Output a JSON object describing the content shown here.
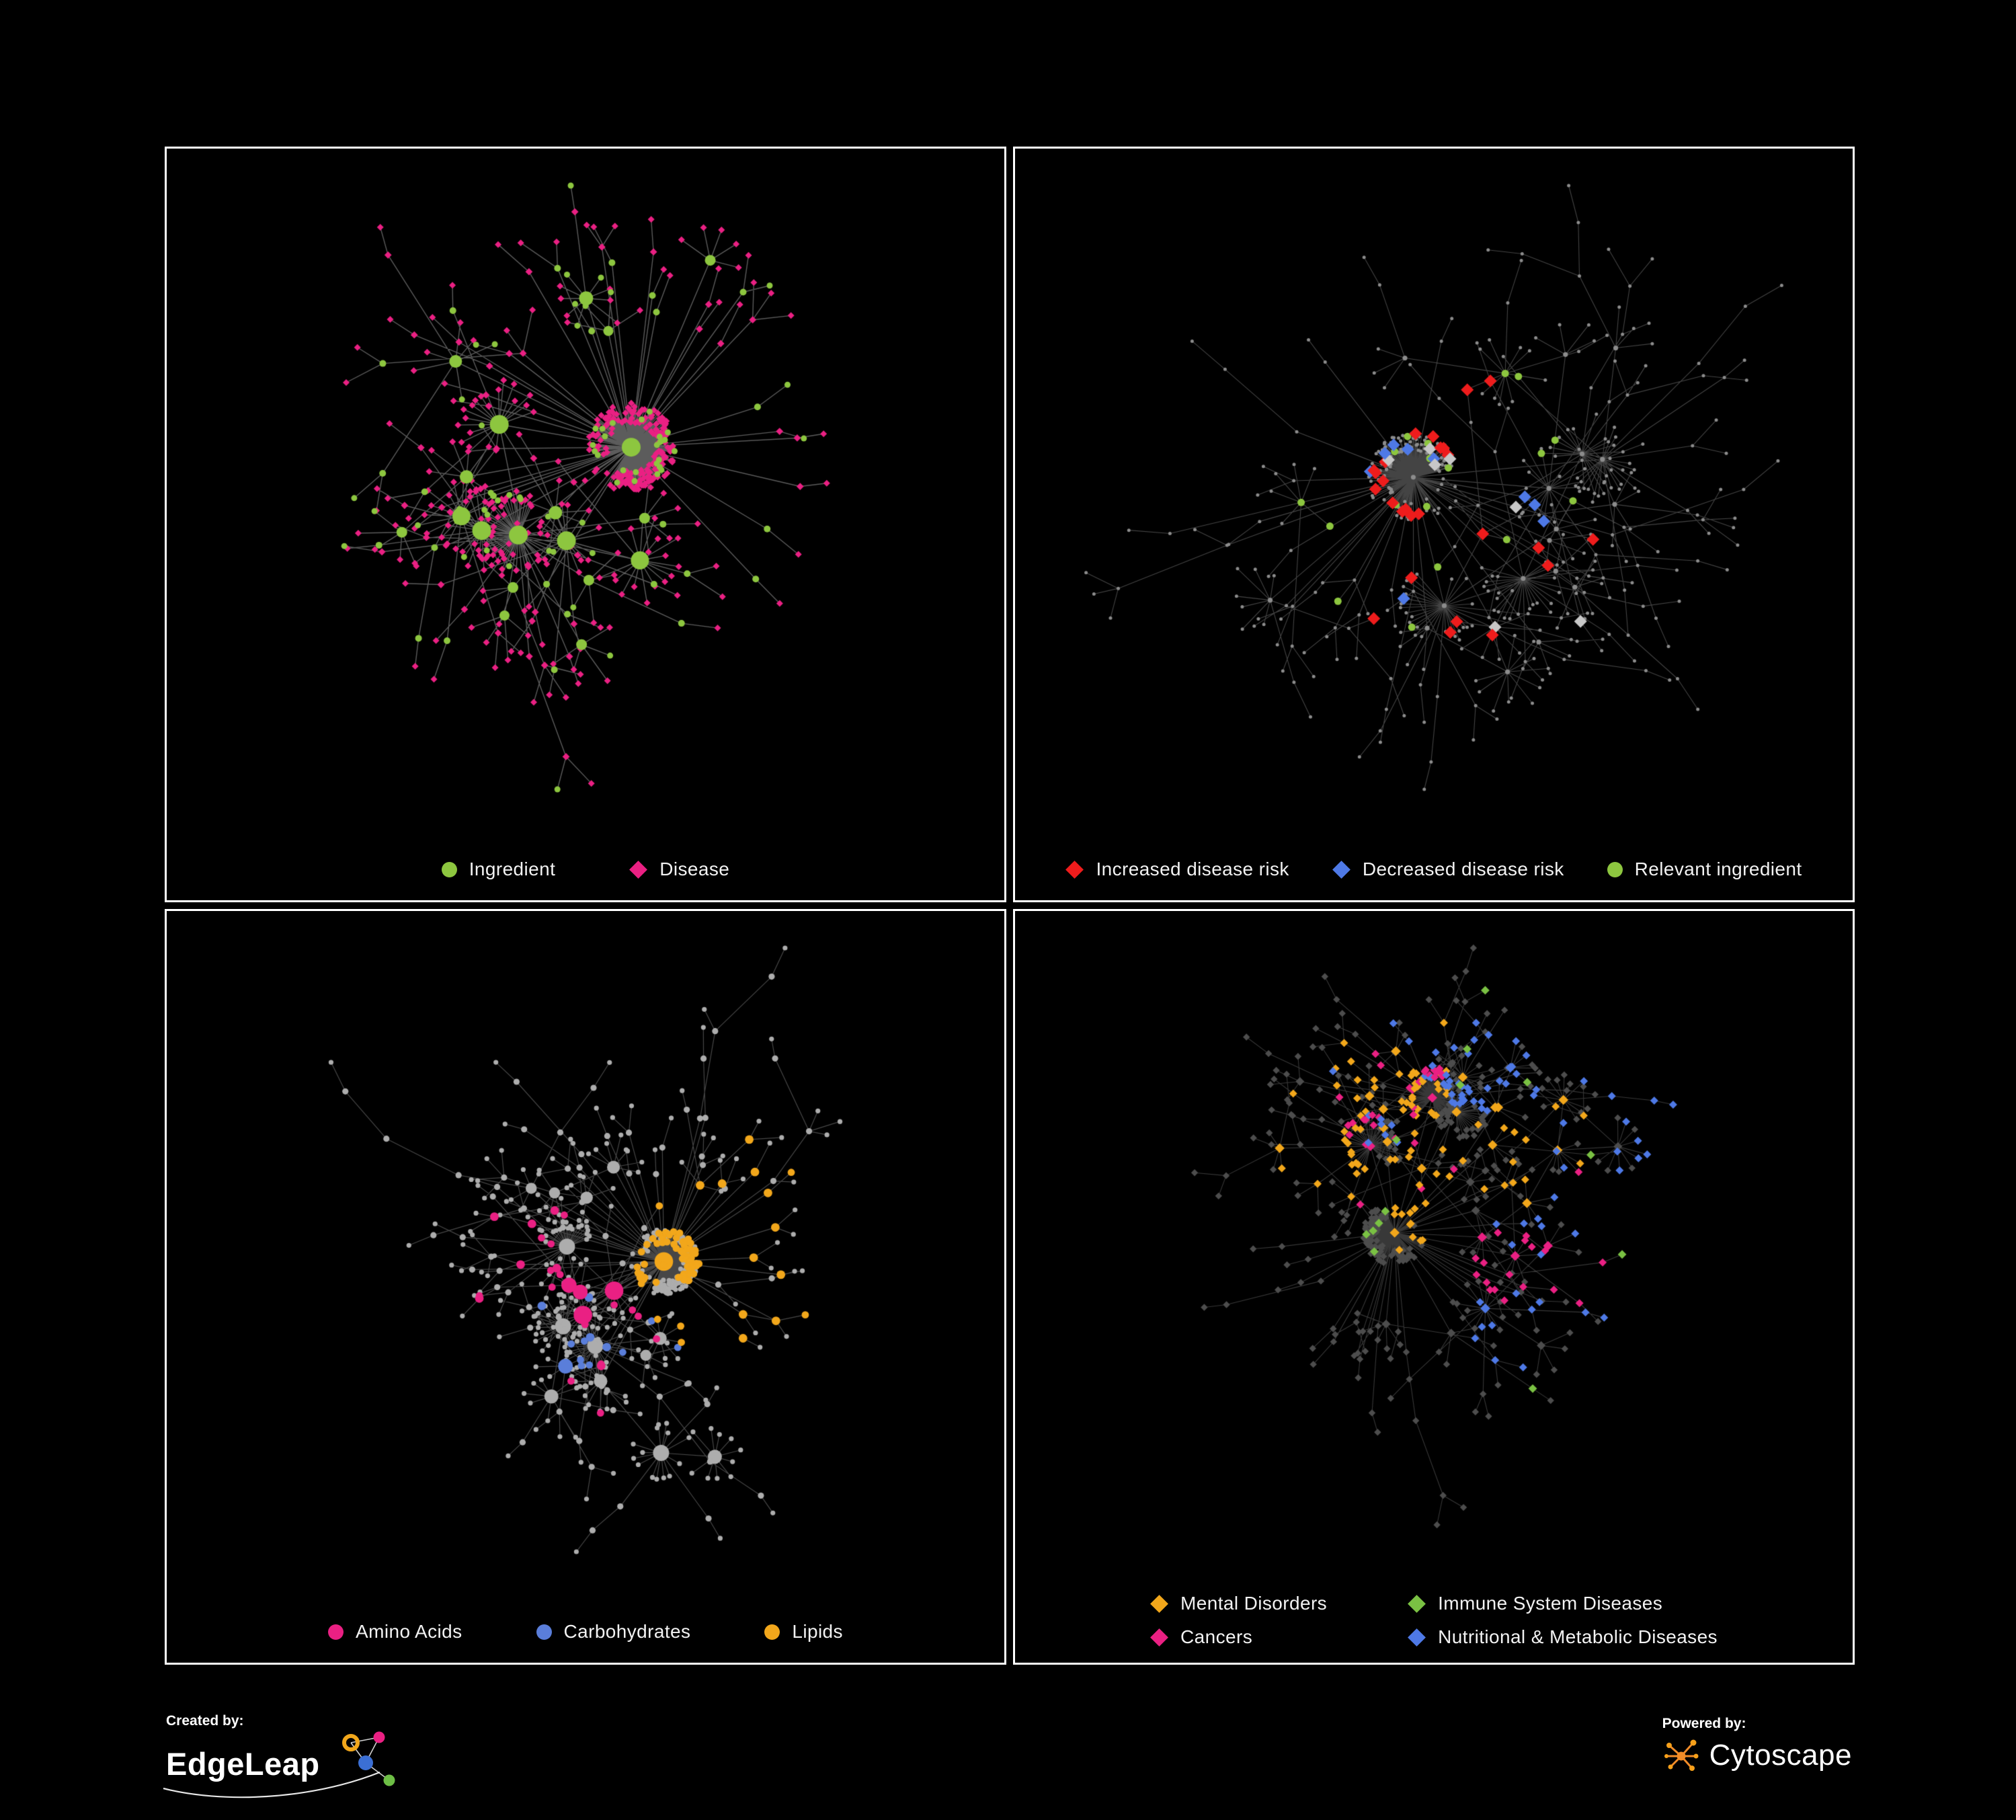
{
  "page": {
    "background": "#000000",
    "panel_border": "#FFFFFF"
  },
  "panels": [
    {
      "name": "ingredient-disease-network",
      "legend": [
        {
          "label": "Ingredient",
          "color": "#8DC63F",
          "shape": "circle"
        },
        {
          "label": "Disease",
          "color": "#EA2083",
          "shape": "diamond"
        }
      ],
      "network": {
        "seed": 101,
        "nodes": 560,
        "edge_color": "rgba(168,168,168,0.55)",
        "edge_width": 1.4,
        "style": "bipartite",
        "colors": {
          "hub": "#8DC63F",
          "leaf": "#EA2083"
        },
        "leaf_secondary_ratio": 0.15,
        "legend_reserve": 110
      }
    },
    {
      "name": "disease-risk-network",
      "legend": [
        {
          "label": "Increased disease risk",
          "color": "#EE1C1C",
          "shape": "diamond"
        },
        {
          "label": "Decreased disease risk",
          "color": "#4E79E6",
          "shape": "diamond"
        },
        {
          "label": "Relevant ingredient",
          "color": "#8DC63F",
          "shape": "circle"
        }
      ],
      "network": {
        "seed": 202,
        "nodes": 520,
        "edge_color": "rgba(150,150,150,0.45)",
        "edge_width": 1.1,
        "style": "highlight",
        "node_shape": "circle",
        "base_color": "#8C8C8C",
        "highlights": [
          {
            "color": "#EE1C1C",
            "shape": "diamond",
            "count": 26
          },
          {
            "color": "#4E79E6",
            "shape": "diamond",
            "count": 9
          },
          {
            "color": "#C8C8C8",
            "shape": "diamond",
            "count": 7
          },
          {
            "color": "#8DC63F",
            "shape": "circle",
            "count": 18
          }
        ],
        "legend_reserve": 110
      }
    },
    {
      "name": "nutrient-network",
      "legend": [
        {
          "label": "Amino Acids",
          "color": "#EA2083",
          "shape": "circle"
        },
        {
          "label": "Carbohydrates",
          "color": "#5A7EDA",
          "shape": "circle"
        },
        {
          "label": "Lipids",
          "color": "#F2A71B",
          "shape": "circle"
        }
      ],
      "network": {
        "seed": 303,
        "nodes": 580,
        "edge_color": "rgba(158,158,158,0.45)",
        "edge_width": 1.2,
        "style": "clusters",
        "node_shape": "circle",
        "base_color": "#ADADAD",
        "clusters": [
          {
            "color": "#F2A71B",
            "centers": 2,
            "radius": 0.14,
            "prob": 0.6,
            "count": 80
          },
          {
            "color": "#EA2083",
            "centers": 6,
            "radius": 0.07,
            "prob": 0.35,
            "count": 26
          },
          {
            "color": "#5A7EDA",
            "centers": 2,
            "radius": 0.06,
            "prob": 0.5,
            "count": 13
          }
        ],
        "legend_reserve": 110
      }
    },
    {
      "name": "disease-category-network",
      "legend": [
        {
          "label": "Mental Disorders",
          "color": "#F2A71B",
          "shape": "diamond"
        },
        {
          "label": "Immune System Diseases",
          "color": "#7AC143",
          "shape": "diamond"
        },
        {
          "label": "Cancers",
          "color": "#EA2083",
          "shape": "diamond"
        },
        {
          "label": "Nutritional & Metabolic Diseases",
          "color": "#4E79E6",
          "shape": "diamond"
        }
      ],
      "network": {
        "seed": 404,
        "nodes": 620,
        "edge_color": "rgba(140,140,140,0.4)",
        "edge_width": 1.1,
        "style": "clusters",
        "node_shape": "diamond",
        "base_color": "#4D4D4D",
        "clusters": [
          {
            "color": "#F2A71B",
            "centers": 2,
            "radius": 0.13,
            "prob": 0.8,
            "count": 105
          },
          {
            "color": "#EA2083",
            "centers": 2,
            "radius": 0.1,
            "prob": 0.6,
            "count": 55
          },
          {
            "color": "#4E79E6",
            "centers": 5,
            "radius": 0.09,
            "prob": 0.6,
            "count": 85
          },
          {
            "color": "#7AC143",
            "scatter": true,
            "count": 13
          }
        ],
        "legend_reserve": 150
      }
    }
  ],
  "footer": {
    "created_by": "Created by:",
    "created_brand": "EdgeLeap",
    "powered_by": "Powered by:",
    "powered_brand": "Cytoscape"
  }
}
